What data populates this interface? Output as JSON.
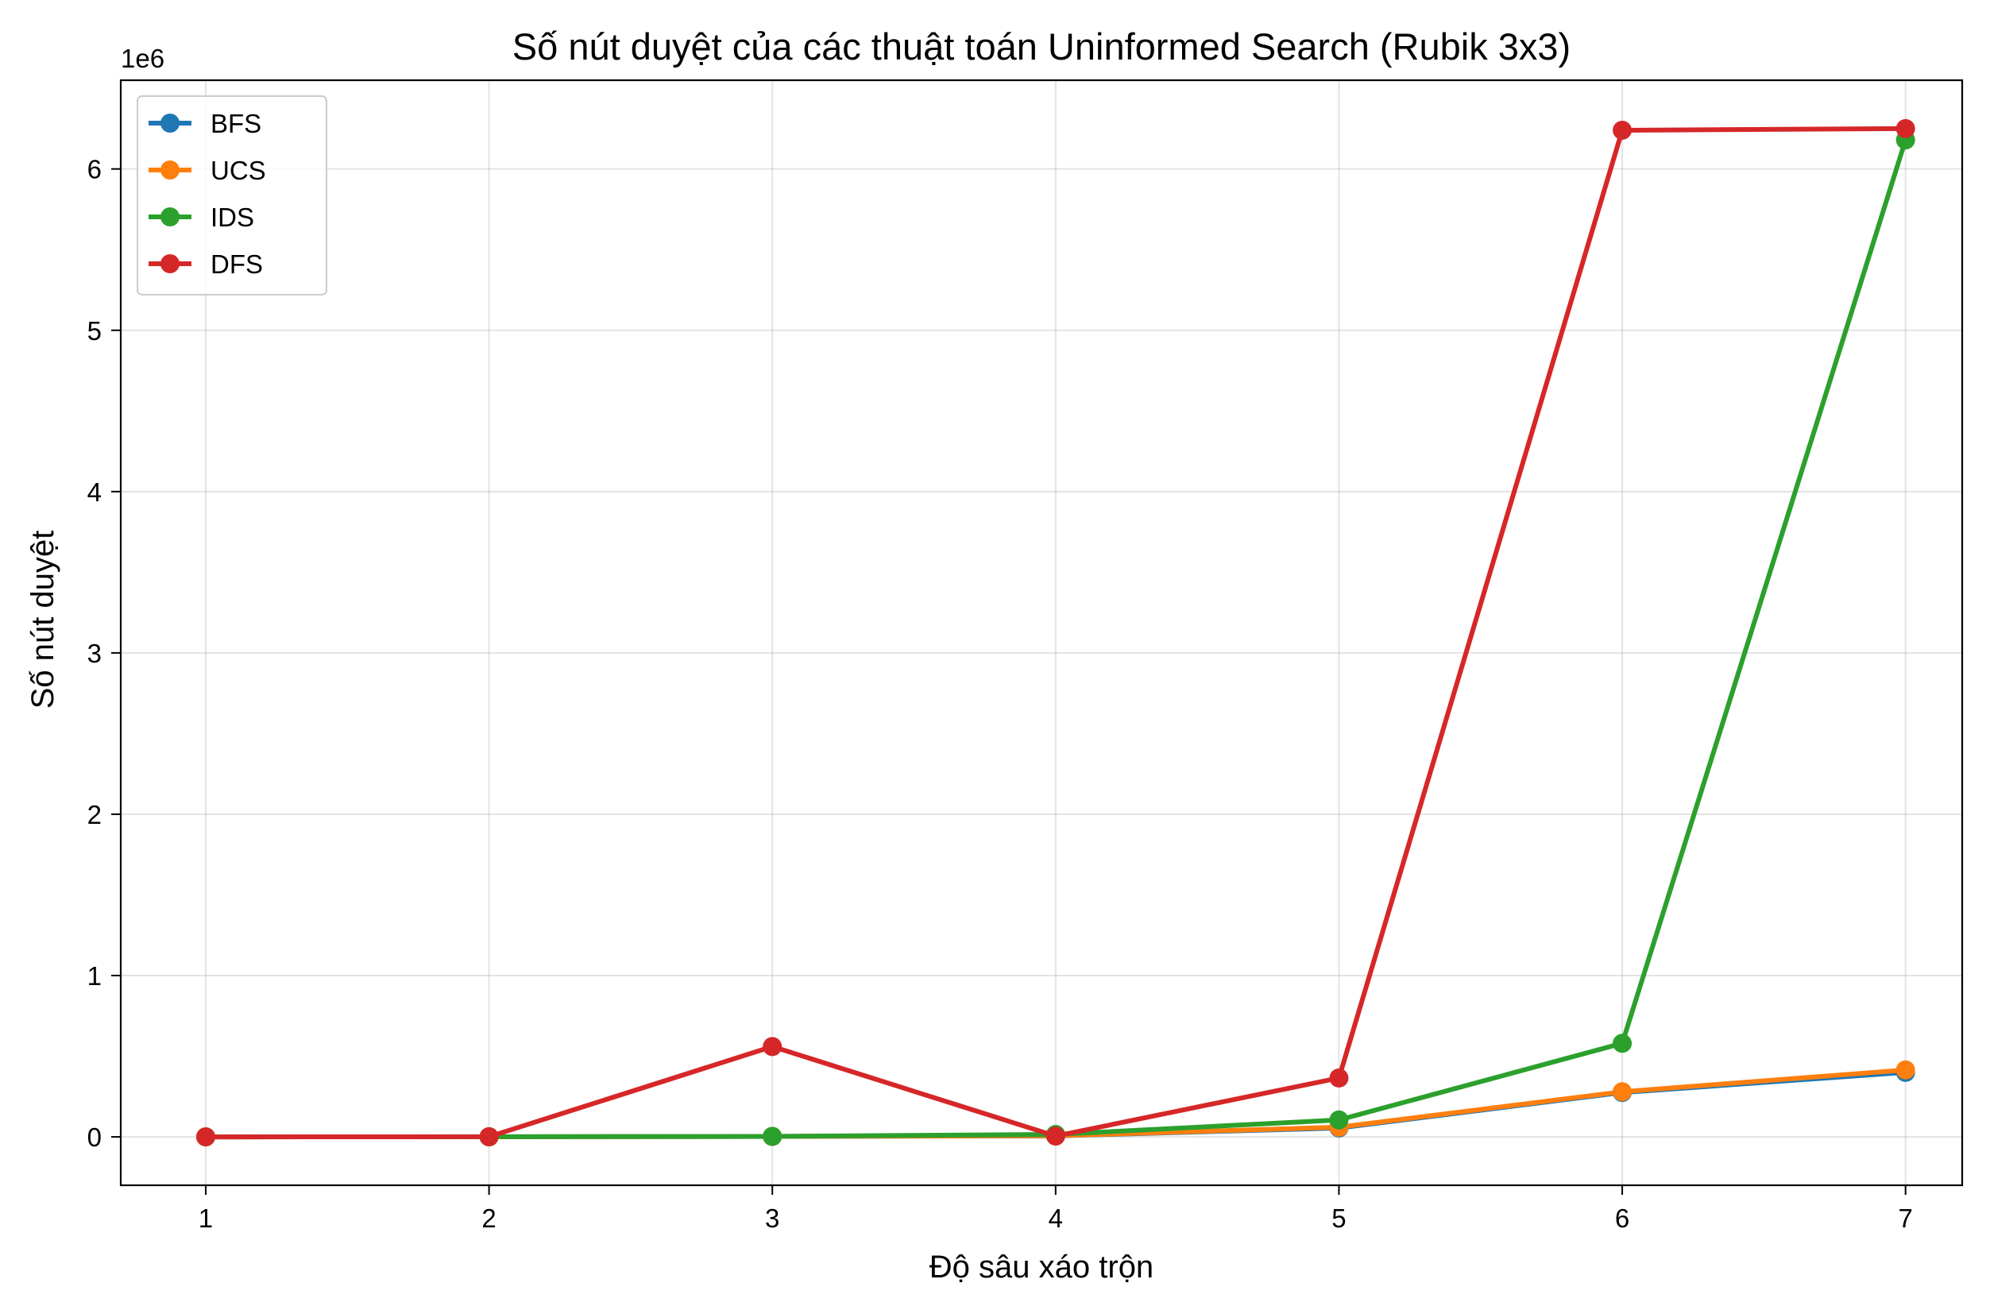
{
  "chart_data": {
    "type": "line",
    "title": "Số nút duyệt của các thuật toán Uninformed Search (Rubik 3x3)",
    "xlabel": "Độ sâu xáo trộn",
    "ylabel": "Số nút duyệt",
    "y_offset_label": "1e6",
    "x": [
      1,
      2,
      3,
      4,
      5,
      6,
      7
    ],
    "x_ticks": [
      "1",
      "2",
      "3",
      "4",
      "5",
      "6",
      "7"
    ],
    "y_ticks": [
      "0",
      "1",
      "2",
      "3",
      "4",
      "5",
      "6"
    ],
    "xlim": [
      0.7,
      7.2
    ],
    "ylim": [
      -0.3,
      6.55
    ],
    "y_scale_factor": 1000000,
    "grid": true,
    "legend_position": "upper-left",
    "series": [
      {
        "name": "BFS",
        "color": "#1f77b4",
        "values": [
          2e-05,
          0.0003,
          0.003,
          0.006,
          0.055,
          0.275,
          0.4
        ]
      },
      {
        "name": "UCS",
        "color": "#ff7f0e",
        "values": [
          2e-05,
          0.0003,
          0.003,
          0.007,
          0.06,
          0.28,
          0.415
        ]
      },
      {
        "name": "IDS",
        "color": "#2ca02c",
        "values": [
          3e-05,
          0.0008,
          0.003,
          0.015,
          0.105,
          0.58,
          6.18
        ]
      },
      {
        "name": "DFS",
        "color": "#d62728",
        "values": [
          3e-05,
          0.0008,
          0.56,
          0.005,
          0.365,
          6.24,
          6.25
        ]
      }
    ]
  }
}
